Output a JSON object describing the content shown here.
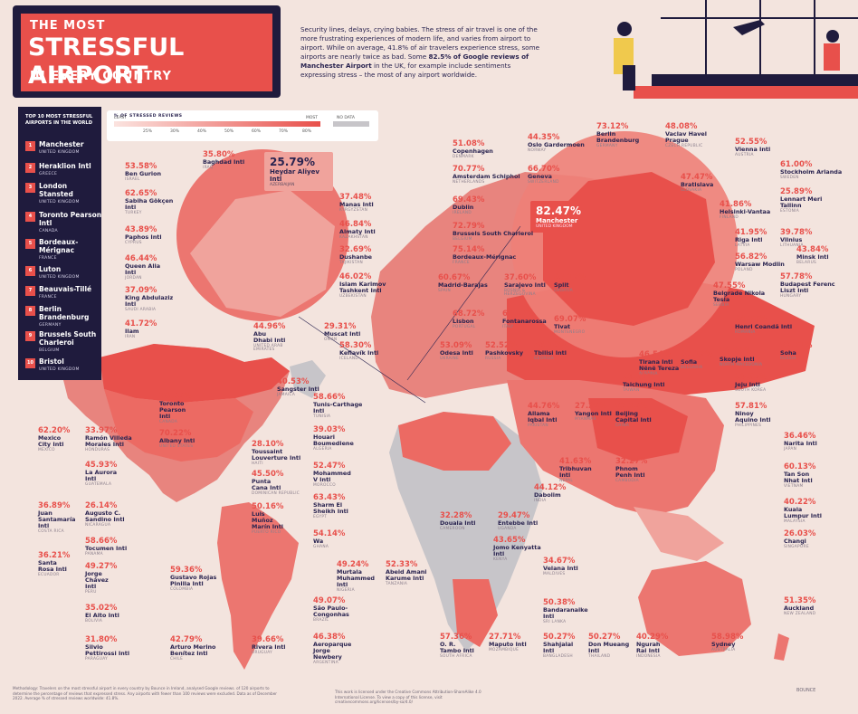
{
  "header": {
    "title_line1": "THE MOST",
    "title_line2": "STRESSFUL AIRPORT",
    "title_line3": "IN EVERY COUNTRY",
    "intro_part1": "Security lines, delays, crying babies. The stress of air travel is one of the more frustrating experiences of modern life, and varies from airport to airport. While on average, 41.8% of air travelers experience stress, some airports are nearly twice as bad. Some",
    "intro_bold1": "82.5% of Google reviews of Manchester Airport",
    "intro_part2": "in the UK, for example include sentiments expressing stress – the most of any airport worldwide."
  },
  "legend": {
    "title": "% OF STRESSED REVIEWS",
    "least": "LEAST",
    "most": "MOST",
    "no_data": "NO DATA",
    "ticks": [
      "25%",
      "30%",
      "40%",
      "50%",
      "60%",
      "70%",
      "80%"
    ]
  },
  "top10": {
    "title": "TOP 10 MOST STRESSFUL AIRPORTS IN THE WORLD",
    "items": [
      {
        "rank": "1",
        "name": "Manchester",
        "country": "UNITED KINGDOM"
      },
      {
        "rank": "2",
        "name": "Heraklion Intl",
        "country": "GREECE"
      },
      {
        "rank": "3",
        "name": "London Stansted",
        "country": "UNITED KINGDOM"
      },
      {
        "rank": "4",
        "name": "Toronto Pearson Intl",
        "country": "CANADA"
      },
      {
        "rank": "5",
        "name": "Bordeaux-Mérignac",
        "country": "FRANCE"
      },
      {
        "rank": "6",
        "name": "Luton",
        "country": "UNITED KINGDOM"
      },
      {
        "rank": "7",
        "name": "Beauvais-Tillé",
        "country": "FRANCE"
      },
      {
        "rank": "8",
        "name": "Berlin Brandenburg",
        "country": "GERMANY"
      },
      {
        "rank": "9",
        "name": "Brussels South Charleroi",
        "country": "BELGIUM"
      },
      {
        "rank": "10",
        "name": "Bristol",
        "country": "UNITED KINGDOM"
      }
    ]
  },
  "heroes": {
    "manchester": {
      "pct": "82.47%",
      "name": "Manchester",
      "country": "UNITED KINGDOM"
    },
    "heydar": {
      "pct": "25.79%",
      "name": "Heydar Aliyev Intl",
      "country": "AZERBAIJAN"
    }
  },
  "airports": [
    {
      "id": "baghdad",
      "pct": "35.80%",
      "name": "Baghdad Intl",
      "country": "IRAQ"
    },
    {
      "id": "bengurion",
      "pct": "53.58%",
      "name": "Ben Gurion",
      "country": "ISRAEL"
    },
    {
      "id": "sabiha",
      "pct": "62.65%",
      "name": "Sabiha Gökçen Intl",
      "country": "TURKEY"
    },
    {
      "id": "paphos",
      "pct": "43.89%",
      "name": "Paphos Intl",
      "country": "CYPRUS"
    },
    {
      "id": "queenalia",
      "pct": "46.44%",
      "name": "Queen Alia Intl",
      "country": "JORDAN"
    },
    {
      "id": "kingabdulaziz",
      "pct": "37.09%",
      "name": "King Abdulaziz Intl",
      "country": "SAUDI ARABIA"
    },
    {
      "id": "ilam",
      "pct": "41.72%",
      "name": "Ilam",
      "country": "IRAN"
    },
    {
      "id": "abudhabi",
      "pct": "44.96%",
      "name": "Abu Dhabi Intl",
      "country": "UNITED ARAB EMIRATES"
    },
    {
      "id": "muscat",
      "pct": "29.31%",
      "name": "Muscat Intl",
      "country": "OMAN"
    },
    {
      "id": "manas",
      "pct": "37.48%",
      "name": "Manas Intl",
      "country": "KYRGYZSTAN"
    },
    {
      "id": "almaty",
      "pct": "46.84%",
      "name": "Almaty Intl",
      "country": "KAZAKHSTAN"
    },
    {
      "id": "dushanbe",
      "pct": "32.69%",
      "name": "Dushanbe",
      "country": "TAJIKISTAN"
    },
    {
      "id": "tashkent",
      "pct": "46.02%",
      "name": "Islam Karimov Tashkent Intl",
      "country": "UZBEKISTAN"
    },
    {
      "id": "copenhagen",
      "pct": "51.08%",
      "name": "Copenhagen",
      "country": "DENMARK"
    },
    {
      "id": "oslo",
      "pct": "44.35%",
      "name": "Oslo Gardermoen",
      "country": "NORWAY"
    },
    {
      "id": "berlin",
      "pct": "73.12%",
      "name": "Berlin Brandenburg",
      "country": "GERMANY"
    },
    {
      "id": "prague",
      "pct": "48.08%",
      "name": "Vaclav Havel Prague",
      "country": "CZECH REPUBLIC"
    },
    {
      "id": "vienna",
      "pct": "52.55%",
      "name": "Vienna Intl",
      "country": "AUSTRIA"
    },
    {
      "id": "stockholm",
      "pct": "61.00%",
      "name": "Stockholm Arlanda",
      "country": "SWEDEN"
    },
    {
      "id": "schiphol",
      "pct": "70.77%",
      "name": "Amsterdam Schiphol",
      "country": "NETHERLANDS"
    },
    {
      "id": "geneva",
      "pct": "66.70%",
      "name": "Geneva",
      "country": "SWITZERLAND"
    },
    {
      "id": "bratislava",
      "pct": "47.47%",
      "name": "Bratislava",
      "country": "SLOVAKIA"
    },
    {
      "id": "tallinn",
      "pct": "25.89%",
      "name": "Lennart Meri Tallinn",
      "country": "ESTONIA"
    },
    {
      "id": "helsinki",
      "pct": "41.86%",
      "name": "Helsinki-Vantaa",
      "country": "FINLAND"
    },
    {
      "id": "dublin",
      "pct": "69.43%",
      "name": "Dublin",
      "country": "IRELAND"
    },
    {
      "id": "riga",
      "pct": "41.95%",
      "name": "Riga Intl",
      "country": "LATVIA"
    },
    {
      "id": "vilnius",
      "pct": "39.78%",
      "name": "Vilnius",
      "country": "LITHUANIA"
    },
    {
      "id": "charleroi",
      "pct": "72.79%",
      "name": "Brussels South Charleroi",
      "country": "BELGIUM"
    },
    {
      "id": "minsk",
      "pct": "43.84%",
      "name": "Minsk Intl",
      "country": "BELARUS"
    },
    {
      "id": "bordeaux",
      "pct": "75.14%",
      "name": "Bordeaux-Mérignac",
      "country": "FRANCE"
    },
    {
      "id": "warsaw",
      "pct": "56.82%",
      "name": "Warsaw Modlin",
      "country": "POLAND"
    },
    {
      "id": "budapest",
      "pct": "57.78%",
      "name": "Budapest Ferenc Liszt Intl",
      "country": "HUNGARY"
    },
    {
      "id": "madrid",
      "pct": "60.67%",
      "name": "Madrid-Barajas",
      "country": "SPAIN"
    },
    {
      "id": "sarajevo",
      "pct": "37.60%",
      "name": "Sarajevo Intl",
      "country": "BOSNIA & HERZEGOVINA"
    },
    {
      "id": "split",
      "pct": "63.12%",
      "name": "Split",
      "country": "CROATIA"
    },
    {
      "id": "belgrade",
      "pct": "47.55%",
      "name": "Belgrade Nikola Tesla",
      "country": "SERBIA"
    },
    {
      "id": "lisbon",
      "pct": "68.72%",
      "name": "Lisbon",
      "country": "PORTUGAL"
    },
    {
      "id": "fontanarossa",
      "pct": "63.57%",
      "name": "Fontanarossa",
      "country": "ITALY"
    },
    {
      "id": "tivat",
      "pct": "69.07%",
      "name": "Tivat",
      "country": "MONTENEGRO"
    },
    {
      "id": "bucharest",
      "pct": "64.77%",
      "name": "Henri Coandă Intl",
      "country": "ROMANIA"
    },
    {
      "id": "keflavik",
      "pct": "58.30%",
      "name": "Keflavík Intl",
      "country": "ICELAND"
    },
    {
      "id": "odesa",
      "pct": "53.09%",
      "name": "Odesa Intl",
      "country": "UKRAINE"
    },
    {
      "id": "pashkovsky",
      "pct": "52.52%",
      "name": "Pashkovsky",
      "country": "RUSSIA"
    },
    {
      "id": "tbilisi",
      "pct": "46.16%",
      "name": "Tbilisi Intl",
      "country": "GEORGIA"
    },
    {
      "id": "tirana",
      "pct": "46.54%",
      "name": "Tirana Intl Nënë Tereza",
      "country": "ALBANIA"
    },
    {
      "id": "sofia",
      "pct": "62.12%",
      "name": "Sofia",
      "country": "BULGARIA"
    },
    {
      "id": "skopje",
      "pct": "39.26%",
      "name": "Skopje Intl",
      "country": "NORTH MACEDONIA"
    },
    {
      "id": "soha",
      "pct": "59.71%",
      "name": "Soha",
      "country": "RUSSIA"
    },
    {
      "id": "taichung",
      "pct": "38.82%",
      "name": "Taichung Intl",
      "country": "TAIWAN"
    },
    {
      "id": "jeju",
      "pct": "39.80%",
      "name": "Jeju Intl",
      "country": "SOUTH KOREA"
    },
    {
      "id": "ninoy",
      "pct": "57.81%",
      "name": "Ninoy Aquino Intl",
      "country": "PHILIPPINES"
    },
    {
      "id": "narita",
      "pct": "36.46%",
      "name": "Narita Intl",
      "country": "JAPAN"
    },
    {
      "id": "tansonnhat",
      "pct": "60.13%",
      "name": "Tan Son Nhat Intl",
      "country": "VIETNAM"
    },
    {
      "id": "klia",
      "pct": "40.22%",
      "name": "Kuala Lumpur Intl",
      "country": "MALAYSIA"
    },
    {
      "id": "changi",
      "pct": "26.03%",
      "name": "Changi",
      "country": "SINGAPORE"
    },
    {
      "id": "auckland",
      "pct": "51.35%",
      "name": "Auckland",
      "country": "NEW ZEALAND"
    },
    {
      "id": "sydney",
      "pct": "58.98%",
      "name": "Sydney",
      "country": "AUSTRALIA"
    },
    {
      "id": "allamaiqbal",
      "pct": "44.76%",
      "name": "Allama Iqbal Intl",
      "country": "PAKISTAN"
    },
    {
      "id": "yangon",
      "pct": "27.25%",
      "name": "Yangon Intl",
      "country": "MYANMAR"
    },
    {
      "id": "beijing",
      "pct": "52.70%",
      "name": "Beijing Capital Intl",
      "country": "CHINA"
    },
    {
      "id": "tribhuvan",
      "pct": "41.63%",
      "name": "Tribhuvan Intl",
      "country": "NEPAL"
    },
    {
      "id": "phnompenh",
      "pct": "32.27%",
      "name": "Phnom Penh Intl",
      "country": "CAMBODIA"
    },
    {
      "id": "dabolim",
      "pct": "44.12%",
      "name": "Dabolim",
      "country": "INDIA"
    },
    {
      "id": "velana",
      "pct": "34.67%",
      "name": "Velana Intl",
      "country": "MALDIVES"
    },
    {
      "id": "bandaranaike",
      "pct": "50.38%",
      "name": "Bandaranaike Intl",
      "country": "SRI LANKA"
    },
    {
      "id": "shahjalal",
      "pct": "50.27%",
      "name": "Shahjalal Intl",
      "country": "BANGLADESH"
    },
    {
      "id": "donmueang",
      "pct": "50.27%",
      "name": "Don Mueang Intl",
      "country": "THAILAND"
    },
    {
      "id": "ngurah",
      "pct": "40.29%",
      "name": "Ngurah Rai Intl",
      "country": "INDONESIA"
    },
    {
      "id": "tunis",
      "pct": "58.66%",
      "name": "Tunis-Carthage Intl",
      "country": "TUNISIA"
    },
    {
      "id": "houari",
      "pct": "39.03%",
      "name": "Houari Boumediene",
      "country": "ALGERIA"
    },
    {
      "id": "mohammedv",
      "pct": "52.47%",
      "name": "Mohammed V Intl",
      "country": "MOROCCO"
    },
    {
      "id": "sharm",
      "pct": "63.43%",
      "name": "Sharm El Sheikh Intl",
      "country": "EGYPT"
    },
    {
      "id": "kotoka",
      "pct": "54.14%",
      "name": "Wa",
      "country": "GHANA"
    },
    {
      "id": "douala",
      "pct": "32.28%",
      "name": "Douala Intl",
      "country": "CAMEROON"
    },
    {
      "id": "entebbe",
      "pct": "29.47%",
      "name": "Entebbe Intl",
      "country": "UGANDA"
    },
    {
      "id": "jomo",
      "pct": "43.65%",
      "name": "Jomo Kenyatta Intl",
      "country": "KENYA"
    },
    {
      "id": "murtala",
      "pct": "49.24%",
      "name": "Murtala Muhammed Intl",
      "country": "NIGERIA"
    },
    {
      "id": "abeid",
      "pct": "52.33%",
      "name": "Abeid Amani Karume Intl",
      "country": "TANZANIA"
    },
    {
      "id": "ortambo",
      "pct": "57.36%",
      "name": "O. R. Tambo Intl",
      "country": "SOUTH AFRICA"
    },
    {
      "id": "maputo",
      "pct": "27.71%",
      "name": "Maputo Intl",
      "country": "MOZAMBIQUE"
    },
    {
      "id": "sangster",
      "pct": "40.53%",
      "name": "Sangster Intl",
      "country": "JAMAICA"
    },
    {
      "id": "toronto",
      "pct": "76.00%",
      "name": "Toronto Pearson Intl",
      "country": "CANADA"
    },
    {
      "id": "albany",
      "pct": "70.22%",
      "name": "Albany Intl",
      "country": "UNITED STATES"
    },
    {
      "id": "toussaint",
      "pct": "28.10%",
      "name": "Toussaint Louverture Intl",
      "country": "HAITI"
    },
    {
      "id": "punta",
      "pct": "45.50%",
      "name": "Punta Cana Intl",
      "country": "DOMINICAN REPUBLIC"
    },
    {
      "id": "munoz",
      "pct": "50.16%",
      "name": "Luis Muñoz Marín Intl",
      "country": "PUERTO RICO"
    },
    {
      "id": "mexico",
      "pct": "62.20%",
      "name": "Mexico City Intl",
      "country": "MEXICO"
    },
    {
      "id": "ramon",
      "pct": "33.97%",
      "name": "Ramón Villeda Morales Intl",
      "country": "HONDURAS"
    },
    {
      "id": "aurora",
      "pct": "45.93%",
      "name": "La Aurora Intl",
      "country": "GUATEMALA"
    },
    {
      "id": "juansantamaria",
      "pct": "36.89%",
      "name": "Juan Santamaría Intl",
      "country": "COSTA RICA"
    },
    {
      "id": "sandino",
      "pct": "26.14%",
      "name": "Augusto C. Sandino Intl",
      "country": "NICARAGUA"
    },
    {
      "id": "tocumen",
      "pct": "58.66%",
      "name": "Tocumen Intl",
      "country": "PANAMA"
    },
    {
      "id": "santarosa",
      "pct": "36.21%",
      "name": "Santa Rosa Intl",
      "country": "ECUADOR"
    },
    {
      "id": "jorgechavez",
      "pct": "49.27%",
      "name": "Jorge Chávez Intl",
      "country": "PERU"
    },
    {
      "id": "gustavo",
      "pct": "59.36%",
      "name": "Gustavo Rojas Pinilla Intl",
      "country": "COLOMBIA"
    },
    {
      "id": "elalto",
      "pct": "35.02%",
      "name": "El Alto Intl",
      "country": "BOLIVIA"
    },
    {
      "id": "silvio",
      "pct": "31.80%",
      "name": "Silvio Pettirossi Intl",
      "country": "PARAGUAY"
    },
    {
      "id": "merino",
      "pct": "42.79%",
      "name": "Arturo Merino Benítez Intl",
      "country": "CHILE"
    },
    {
      "id": "rivera",
      "pct": "39.66%",
      "name": "Rivera Intl",
      "country": "URUGUAY"
    },
    {
      "id": "congonhas",
      "pct": "49.07%",
      "name": "São Paulo-Congonhas",
      "country": "BRAZIL"
    },
    {
      "id": "aeroparque",
      "pct": "46.38%",
      "name": "Aeroparque Jorge Newbery",
      "country": "ARGENTINA"
    }
  ],
  "footer": {
    "methodology": "Methodology: Travelers on the most stressful airport in every country by Bounce in Ireland, analysed Google reviews. of 120 airports to determine the percentage of reviews that expressed stress. Any airports with fewer than 100 reviews were excluded. Data as of December 2022. Average % of stressed reviews worldwide: 41.8%.",
    "license": "This work is licensed under the Creative Commons Attribution-ShareAlike 4.0 International License. To view a copy of this license, visit creativecommons.org/licenses/by-sa/4.0/",
    "brand": "BOUNCE"
  },
  "colors": {
    "accent": "#e8504b",
    "navy": "#1f1b3d",
    "background": "#f3e4de",
    "no_data": "#c7c5c9"
  }
}
